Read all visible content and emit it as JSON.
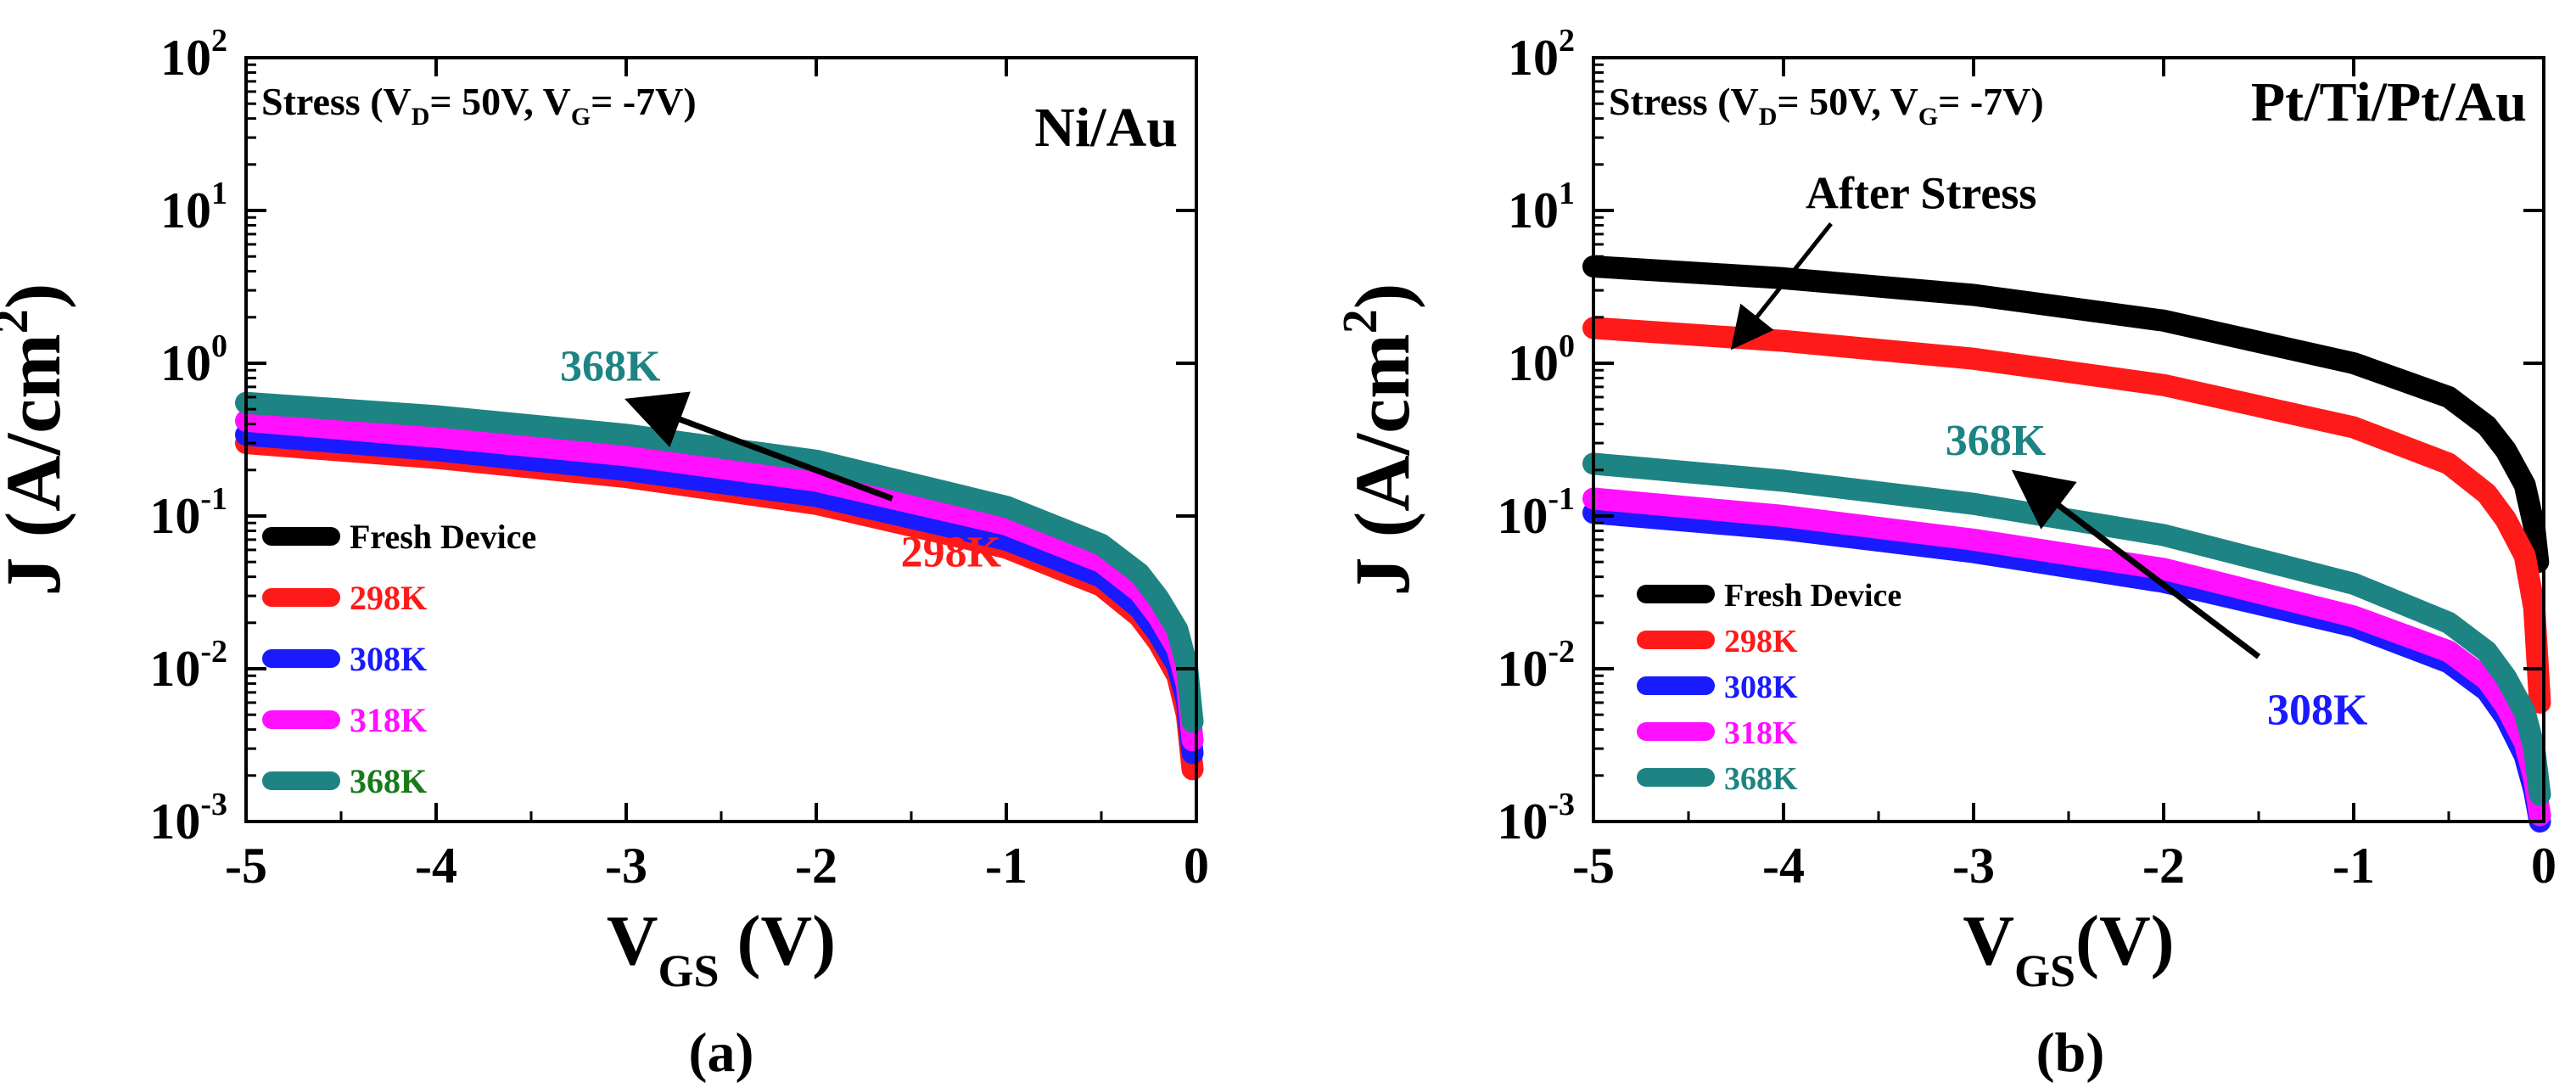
{
  "panels": [
    {
      "caption": "(a)",
      "chart_data": {
        "type": "line",
        "title": "Ni/Au",
        "annotation": {
          "text": "Stress (V",
          "sub1": "D",
          "mid": "= 50V, V",
          "sub2": "G",
          "tail": "= -7V)"
        },
        "xlabel": {
          "main": "V",
          "sub": "GS",
          "tail": " (V)"
        },
        "ylabel": {
          "main": "J (A/cm",
          "sup": "2",
          "tail": ")"
        },
        "xlim": [
          -5,
          0
        ],
        "ylim": [
          0.001,
          100
        ],
        "yscale": "log",
        "x_ticks": [
          "-5",
          "-4",
          "-3",
          "-2",
          "-1",
          "0"
        ],
        "y_ticks": [
          {
            "base": "10",
            "exp": "-3"
          },
          {
            "base": "10",
            "exp": "-2"
          },
          {
            "base": "10",
            "exp": "-1"
          },
          {
            "base": "10",
            "exp": "0"
          },
          {
            "base": "10",
            "exp": "1"
          },
          {
            "base": "10",
            "exp": "2"
          }
        ],
        "series": [
          {
            "name": "Fresh Device",
            "color": "#000000",
            "label_color": "#000000",
            "shown": false,
            "x": [],
            "y": []
          },
          {
            "name": "298K",
            "color": "#ff1a1a",
            "label_color": "#ff1a1a",
            "shown": true,
            "x": [
              -5,
              -4,
              -3,
              -2,
              -1,
              -0.5,
              -0.3,
              -0.2,
              -0.1,
              -0.05,
              -0.02
            ],
            "y": [
              0.3,
              0.24,
              0.18,
              0.12,
              0.062,
              0.035,
              0.022,
              0.015,
              0.009,
              0.005,
              0.0022
            ]
          },
          {
            "name": "308K",
            "color": "#1a1aff",
            "label_color": "#1a1aff",
            "shown": true,
            "x": [
              -5,
              -4,
              -3,
              -2,
              -1,
              -0.5,
              -0.3,
              -0.2,
              -0.1,
              -0.05,
              -0.02
            ],
            "y": [
              0.34,
              0.27,
              0.2,
              0.135,
              0.07,
              0.04,
              0.025,
              0.017,
              0.0105,
              0.0062,
              0.0028
            ]
          },
          {
            "name": "318K",
            "color": "#ff10ff",
            "label_color": "#ff10ff",
            "shown": true,
            "x": [
              -5,
              -4,
              -3,
              -2,
              -1,
              -0.5,
              -0.3,
              -0.2,
              -0.1,
              -0.05,
              -0.02
            ],
            "y": [
              0.42,
              0.33,
              0.25,
              0.17,
              0.088,
              0.05,
              0.032,
              0.022,
              0.0135,
              0.0078,
              0.0034
            ]
          },
          {
            "name": "368K",
            "color": "#1e8383",
            "label_color": "#1a7a1a",
            "shown": true,
            "x": [
              -5,
              -4,
              -3,
              -2,
              -1,
              -0.5,
              -0.3,
              -0.2,
              -0.1,
              -0.05,
              -0.02
            ],
            "y": [
              0.55,
              0.45,
              0.34,
              0.23,
              0.115,
              0.065,
              0.042,
              0.029,
              0.018,
              0.0105,
              0.0045
            ]
          }
        ],
        "arrow": {
          "from_label": "298K",
          "from_label_color": "#ff1a1a",
          "to_label": "368K",
          "to_label_color": "#1e8383",
          "from": [
            -1.6,
            0.13
          ],
          "to": [
            -2.95,
            0.55
          ]
        }
      }
    },
    {
      "caption": "(b)",
      "chart_data": {
        "type": "line",
        "title": "Pt/Ti/Pt/Au",
        "annotation": {
          "text": "Stress (V",
          "sub1": "D",
          "mid": "= 50V, V",
          "sub2": "G",
          "tail": "= -7V)"
        },
        "after_stress_label": "After Stress",
        "after_stress_arrow": {
          "from": [
            -3.75,
            8.2
          ],
          "to": [
            -4.25,
            1.35
          ]
        },
        "xlabel": {
          "main": "V",
          "sub": "GS",
          "tail": "(V)"
        },
        "ylabel": {
          "main": "J (A/cm",
          "sup": "2",
          "tail": ")"
        },
        "xlim": [
          -5,
          0
        ],
        "ylim": [
          0.001,
          100
        ],
        "yscale": "log",
        "x_ticks": [
          "-5",
          "-4",
          "-3",
          "-2",
          "-1",
          "0"
        ],
        "y_ticks": [
          {
            "base": "10",
            "exp": "-3"
          },
          {
            "base": "10",
            "exp": "-2"
          },
          {
            "base": "10",
            "exp": "-1"
          },
          {
            "base": "10",
            "exp": "0"
          },
          {
            "base": "10",
            "exp": "1"
          },
          {
            "base": "10",
            "exp": "2"
          }
        ],
        "series": [
          {
            "name": "Fresh Device",
            "color": "#000000",
            "label_color": "#000000",
            "shown": true,
            "x": [
              -5,
              -4,
              -3,
              -2,
              -1,
              -0.5,
              -0.3,
              -0.2,
              -0.1,
              -0.05,
              -0.03
            ],
            "y": [
              4.3,
              3.6,
              2.8,
              1.9,
              1.0,
              0.6,
              0.39,
              0.27,
              0.16,
              0.085,
              0.05
            ]
          },
          {
            "name": "298K",
            "color": "#ff1a1a",
            "label_color": "#ff1a1a",
            "shown": true,
            "x": [
              -5,
              -4,
              -3,
              -2,
              -1,
              -0.5,
              -0.3,
              -0.2,
              -0.1,
              -0.05,
              -0.02
            ],
            "y": [
              1.7,
              1.4,
              1.07,
              0.72,
              0.38,
              0.22,
              0.14,
              0.095,
              0.055,
              0.025,
              0.006
            ]
          },
          {
            "name": "308K",
            "color": "#1a1aff",
            "label_color": "#1a1aff",
            "shown": true,
            "x": [
              -5,
              -4,
              -3,
              -2,
              -1,
              -0.5,
              -0.3,
              -0.2,
              -0.1,
              -0.05,
              -0.02
            ],
            "y": [
              0.105,
              0.082,
              0.058,
              0.037,
              0.019,
              0.011,
              0.0072,
              0.0048,
              0.0027,
              0.0016,
              0.001
            ]
          },
          {
            "name": "318K",
            "color": "#ff10ff",
            "label_color": "#ff10ff",
            "shown": true,
            "x": [
              -5,
              -4,
              -3,
              -2,
              -1,
              -0.5,
              -0.3,
              -0.2,
              -0.1,
              -0.05,
              -0.02
            ],
            "y": [
              0.13,
              0.1,
              0.07,
              0.045,
              0.022,
              0.013,
              0.0085,
              0.0057,
              0.0033,
              0.0019,
              0.0011
            ]
          },
          {
            "name": "368K",
            "color": "#1e8383",
            "label_color": "#1e8383",
            "shown": true,
            "x": [
              -5,
              -4,
              -3,
              -2,
              -1,
              -0.5,
              -0.3,
              -0.2,
              -0.1,
              -0.05,
              -0.02
            ],
            "y": [
              0.22,
              0.17,
              0.12,
              0.075,
              0.036,
              0.02,
              0.013,
              0.0088,
              0.0052,
              0.003,
              0.0015
            ]
          }
        ],
        "arrow": {
          "from_label": "308K",
          "from_label_color": "#1a1aff",
          "to_label": "368K",
          "to_label_color": "#1e8383",
          "from": [
            -1.5,
            0.012
          ],
          "to": [
            -2.75,
            0.18
          ]
        }
      }
    }
  ]
}
